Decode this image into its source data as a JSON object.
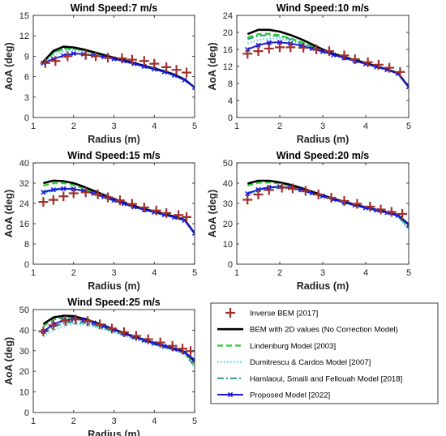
{
  "legend": {
    "placement": "bottom-right",
    "entries": [
      {
        "key": "inverse",
        "label": "Inverse BEM [2017]",
        "color": "#a0302a",
        "style": "plus-markers"
      },
      {
        "key": "bem2d",
        "label": "BEM with 2D values (No Correction Model)",
        "color": "#000000",
        "style": "solid"
      },
      {
        "key": "lind",
        "label": "Lindenburg Model [2003]",
        "color": "#33cc33",
        "style": "dashed"
      },
      {
        "key": "dum",
        "label": "Dumitrescu & Cardos Model [2007]",
        "color": "#55ccdd",
        "style": "dotted"
      },
      {
        "key": "ham",
        "label": "Hamlaoui, Smaili and Fellouah Model  [2018]",
        "color": "#339999",
        "style": "dashdot"
      },
      {
        "key": "prop",
        "label": "Proposed Model [2022]",
        "color": "#1a1adb",
        "style": "solid-x"
      }
    ]
  },
  "chart_data": [
    {
      "type": "line",
      "title": "Wind Speed:7 m/s",
      "xlabel": "Radius (m)",
      "ylabel": "AoA (deg)",
      "xlim": [
        1,
        5
      ],
      "ylim": [
        0,
        15
      ],
      "xticks": [
        1,
        2,
        3,
        4,
        5
      ],
      "yticks": [
        0,
        3,
        6,
        9,
        12,
        15
      ],
      "grid": false,
      "x": [
        1.25,
        1.5,
        1.75,
        2.0,
        2.25,
        2.5,
        2.75,
        3.0,
        3.25,
        3.5,
        3.75,
        4.0,
        4.25,
        4.5,
        4.75,
        5.0
      ],
      "series": [
        {
          "key": "bem2d",
          "values": [
            8.2,
            9.8,
            10.4,
            10.3,
            10.0,
            9.6,
            9.2,
            8.8,
            8.4,
            8.0,
            7.6,
            7.2,
            6.8,
            6.3,
            5.6,
            4.4
          ]
        },
        {
          "key": "lind",
          "values": [
            8.1,
            9.5,
            10.1,
            10.1,
            9.9,
            9.5,
            9.1,
            8.7,
            8.3,
            7.9,
            7.5,
            7.1,
            6.7,
            6.2,
            5.5,
            4.4
          ]
        },
        {
          "key": "dum",
          "values": [
            7.9,
            9.1,
            9.8,
            9.9,
            9.7,
            9.4,
            9.0,
            8.6,
            8.2,
            7.8,
            7.4,
            7.0,
            6.6,
            6.1,
            5.5,
            4.4
          ]
        },
        {
          "key": "ham",
          "values": [
            8.1,
            9.6,
            10.2,
            10.1,
            9.9,
            9.5,
            9.1,
            8.7,
            8.3,
            7.9,
            7.5,
            7.1,
            6.7,
            6.2,
            5.5,
            4.4
          ]
        },
        {
          "key": "prop",
          "values": [
            8.0,
            8.6,
            9.1,
            9.4,
            9.3,
            9.1,
            8.9,
            8.6,
            8.3,
            7.9,
            7.5,
            7.1,
            6.7,
            6.2,
            5.5,
            4.4
          ]
        },
        {
          "key": "inverse",
          "x": [
            1.3,
            1.55,
            1.85,
            2.3,
            2.55,
            2.85,
            3.2,
            3.45,
            3.75,
            4.0,
            4.3,
            4.55,
            4.8
          ],
          "values": [
            8.0,
            8.3,
            9.0,
            9.2,
            9.0,
            8.8,
            8.7,
            8.5,
            8.3,
            7.9,
            7.4,
            7.0,
            6.6
          ]
        }
      ]
    },
    {
      "type": "line",
      "title": "Wind Speed:10 m/s",
      "xlabel": "Radius (m)",
      "ylabel": "AoA (deg)",
      "xlim": [
        1,
        5
      ],
      "ylim": [
        0,
        24
      ],
      "xticks": [
        1,
        2,
        3,
        4,
        5
      ],
      "yticks": [
        0,
        4,
        8,
        12,
        16,
        20,
        24
      ],
      "grid": false,
      "x": [
        1.25,
        1.5,
        1.75,
        2.0,
        2.25,
        2.5,
        2.75,
        3.0,
        3.25,
        3.5,
        3.75,
        4.0,
        4.25,
        4.5,
        4.75,
        5.0
      ],
      "series": [
        {
          "key": "bem2d",
          "values": [
            19.6,
            20.6,
            20.6,
            20.2,
            19.4,
            18.4,
            17.2,
            16.0,
            15.0,
            14.2,
            13.5,
            12.8,
            12.0,
            11.3,
            10.4,
            7.2
          ]
        },
        {
          "key": "lind",
          "values": [
            18.8,
            19.6,
            19.7,
            19.3,
            18.6,
            17.7,
            16.7,
            15.8,
            14.9,
            14.1,
            13.4,
            12.7,
            12.0,
            11.3,
            10.4,
            7.2
          ]
        },
        {
          "key": "dum",
          "values": [
            17.4,
            18.2,
            18.6,
            18.6,
            18.0,
            17.3,
            16.5,
            15.6,
            14.8,
            14.0,
            13.3,
            12.6,
            11.9,
            11.2,
            10.3,
            7.2
          ]
        },
        {
          "key": "ham",
          "values": [
            18.4,
            19.2,
            19.4,
            19.1,
            18.4,
            17.6,
            16.6,
            15.7,
            14.8,
            14.0,
            13.3,
            12.6,
            11.9,
            11.2,
            10.3,
            7.2
          ]
        },
        {
          "key": "prop",
          "values": [
            16.0,
            17.0,
            17.6,
            17.7,
            17.4,
            16.9,
            16.2,
            15.5,
            14.7,
            14.0,
            13.3,
            12.6,
            11.9,
            11.2,
            10.3,
            7.2
          ]
        },
        {
          "key": "inverse",
          "x": [
            1.25,
            1.5,
            1.75,
            2.0,
            2.25,
            2.55,
            2.85,
            3.15,
            3.5,
            3.75,
            4.05,
            4.3,
            4.55,
            4.8
          ],
          "values": [
            15.0,
            15.6,
            16.2,
            16.5,
            16.5,
            16.4,
            16.0,
            15.6,
            14.6,
            13.7,
            13.0,
            12.4,
            11.7,
            10.7
          ]
        }
      ]
    },
    {
      "type": "line",
      "title": "Wind Speed:15 m/s",
      "xlabel": "Radius (m)",
      "ylabel": "AoA (deg)",
      "xlim": [
        1,
        5
      ],
      "ylim": [
        0,
        40
      ],
      "xticks": [
        1,
        2,
        3,
        4,
        5
      ],
      "yticks": [
        0,
        8,
        16,
        24,
        32,
        40
      ],
      "grid": false,
      "x": [
        1.25,
        1.5,
        1.75,
        2.0,
        2.25,
        2.5,
        2.75,
        3.0,
        3.25,
        3.5,
        3.75,
        4.0,
        4.25,
        4.5,
        4.75,
        5.0
      ],
      "series": [
        {
          "key": "bem2d",
          "values": [
            32.0,
            33.0,
            32.8,
            32.0,
            30.6,
            29.0,
            27.4,
            25.8,
            24.3,
            23.0,
            21.8,
            20.8,
            19.8,
            18.8,
            17.5,
            12.2
          ]
        },
        {
          "key": "lind",
          "values": [
            31.0,
            32.0,
            32.0,
            31.2,
            30.0,
            28.5,
            27.0,
            25.5,
            24.1,
            22.8,
            21.6,
            20.6,
            19.6,
            18.6,
            17.4,
            12.2
          ]
        },
        {
          "key": "dum",
          "values": [
            27.8,
            29.0,
            29.6,
            29.5,
            28.8,
            27.6,
            26.3,
            25.0,
            23.7,
            22.5,
            21.4,
            20.4,
            19.4,
            18.5,
            17.3,
            12.2
          ]
        },
        {
          "key": "ham",
          "values": [
            28.6,
            29.6,
            30.0,
            29.8,
            29.0,
            27.8,
            26.5,
            25.1,
            23.8,
            22.6,
            21.5,
            20.5,
            19.5,
            18.5,
            17.3,
            12.2
          ]
        },
        {
          "key": "prop",
          "values": [
            28.4,
            29.4,
            29.8,
            29.7,
            29.0,
            27.9,
            26.6,
            25.2,
            23.9,
            22.6,
            21.5,
            20.5,
            19.5,
            18.5,
            17.3,
            12.2
          ]
        },
        {
          "key": "inverse",
          "x": [
            1.25,
            1.5,
            1.75,
            2.0,
            2.3,
            2.6,
            2.85,
            3.15,
            3.45,
            3.75,
            4.05,
            4.3,
            4.6,
            4.8
          ],
          "values": [
            24.6,
            25.4,
            26.8,
            28.0,
            28.4,
            27.6,
            26.4,
            25.2,
            23.8,
            22.4,
            21.2,
            20.2,
            19.4,
            18.6
          ]
        }
      ]
    },
    {
      "type": "line",
      "title": "Wind Speed:20 m/s",
      "xlabel": "Radius (m)",
      "ylabel": "AoA (deg)",
      "xlim": [
        1,
        5
      ],
      "ylim": [
        0,
        50
      ],
      "xticks": [
        1,
        2,
        3,
        4,
        5
      ],
      "yticks": [
        0,
        10,
        20,
        30,
        40,
        50
      ],
      "grid": false,
      "x": [
        1.25,
        1.5,
        1.75,
        2.0,
        2.25,
        2.5,
        2.75,
        3.0,
        3.25,
        3.5,
        3.75,
        4.0,
        4.25,
        4.5,
        4.75,
        5.0
      ],
      "series": [
        {
          "key": "bem2d",
          "values": [
            39.8,
            41.2,
            41.2,
            40.4,
            39.2,
            37.6,
            35.8,
            34.0,
            32.3,
            30.8,
            29.4,
            28.0,
            26.8,
            25.6,
            24.2,
            19.6
          ]
        },
        {
          "key": "lind",
          "values": [
            38.8,
            40.2,
            40.4,
            39.8,
            38.8,
            37.3,
            35.6,
            33.8,
            32.2,
            30.7,
            29.3,
            27.9,
            26.7,
            25.5,
            24.0,
            18.5
          ]
        },
        {
          "key": "dum",
          "values": [
            34.0,
            35.8,
            37.0,
            37.4,
            37.0,
            36.0,
            34.6,
            33.2,
            31.7,
            30.3,
            28.9,
            27.6,
            26.4,
            25.2,
            23.6,
            17.0
          ]
        },
        {
          "key": "ham",
          "values": [
            35.0,
            37.0,
            38.0,
            38.2,
            37.6,
            36.4,
            35.0,
            33.4,
            31.9,
            30.4,
            29.0,
            27.7,
            26.5,
            25.3,
            23.8,
            17.8
          ]
        },
        {
          "key": "prop",
          "values": [
            34.8,
            36.8,
            37.9,
            38.2,
            37.7,
            36.6,
            35.1,
            33.6,
            32.0,
            30.5,
            29.1,
            27.8,
            26.6,
            25.4,
            24.0,
            19.4
          ]
        },
        {
          "key": "inverse",
          "x": [
            1.25,
            1.5,
            1.75,
            2.05,
            2.3,
            2.6,
            2.9,
            3.2,
            3.5,
            3.8,
            4.1,
            4.35,
            4.6,
            4.85
          ],
          "values": [
            31.8,
            34.4,
            36.6,
            37.8,
            37.4,
            36.2,
            34.4,
            32.8,
            31.2,
            29.8,
            28.4,
            27.0,
            25.8,
            24.8
          ]
        }
      ]
    },
    {
      "type": "line",
      "title": "Wind Speed:25 m/s",
      "xlabel": "Radius (m)",
      "ylabel": "AoA (deg)",
      "xlim": [
        1,
        5
      ],
      "ylim": [
        0,
        50
      ],
      "xticks": [
        1,
        2,
        3,
        4,
        5
      ],
      "yticks": [
        0,
        10,
        20,
        30,
        40,
        50
      ],
      "grid": false,
      "x": [
        1.25,
        1.5,
        1.75,
        2.0,
        2.25,
        2.5,
        2.75,
        3.0,
        3.25,
        3.5,
        3.75,
        4.0,
        4.25,
        4.5,
        4.75,
        5.0
      ],
      "series": [
        {
          "key": "bem2d",
          "values": [
            43.0,
            46.2,
            47.0,
            46.8,
            45.6,
            44.0,
            42.2,
            40.4,
            38.6,
            36.9,
            35.3,
            33.8,
            32.4,
            31.0,
            29.4,
            25.0
          ]
        },
        {
          "key": "lind",
          "values": [
            42.0,
            45.2,
            46.2,
            46.0,
            45.0,
            43.6,
            41.9,
            40.1,
            38.4,
            36.7,
            35.1,
            33.6,
            32.2,
            30.8,
            29.2,
            24.0
          ]
        },
        {
          "key": "dum",
          "values": [
            37.0,
            40.0,
            42.0,
            43.0,
            42.8,
            41.8,
            40.4,
            38.9,
            37.3,
            35.8,
            34.3,
            32.9,
            31.5,
            30.1,
            28.5,
            21.8
          ]
        },
        {
          "key": "ham",
          "values": [
            38.6,
            41.6,
            43.4,
            44.0,
            43.6,
            42.5,
            41.0,
            39.4,
            37.8,
            36.2,
            34.7,
            33.2,
            31.8,
            30.4,
            28.8,
            22.6
          ]
        },
        {
          "key": "prop",
          "values": [
            39.4,
            42.8,
            44.8,
            45.4,
            45.0,
            43.6,
            41.9,
            40.2,
            38.4,
            36.7,
            35.1,
            33.6,
            32.2,
            30.8,
            29.2,
            25.6
          ]
        },
        {
          "key": "inverse",
          "x": [
            1.25,
            1.5,
            1.8,
            2.05,
            2.35,
            2.65,
            2.95,
            3.25,
            3.55,
            3.85,
            4.15,
            4.45,
            4.7,
            4.9
          ],
          "values": [
            39.4,
            42.4,
            44.6,
            45.2,
            44.4,
            42.8,
            40.8,
            39.0,
            37.2,
            35.6,
            34.0,
            32.4,
            31.0,
            29.8
          ]
        }
      ]
    }
  ]
}
